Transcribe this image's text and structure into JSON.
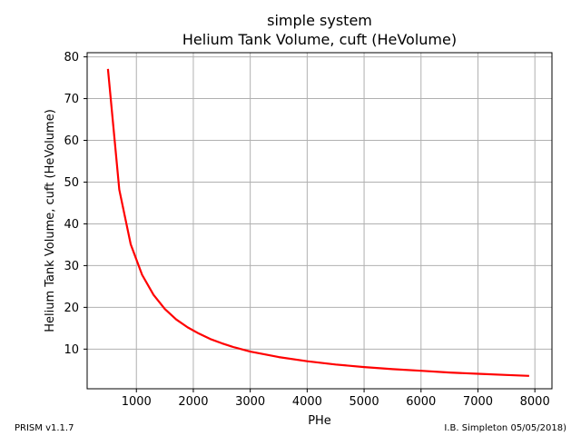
{
  "chart_data": {
    "type": "line",
    "title": "simple system",
    "subtitle": "Helium Tank Volume, cuft (HeVolume)",
    "xlabel": "PHe",
    "ylabel": "Helium Tank Volume, cuft (HeVolume)",
    "xlim": [
      135,
      8300
    ],
    "ylim": [
      0.5,
      81
    ],
    "xticks": [
      1000,
      2000,
      3000,
      4000,
      5000,
      6000,
      7000,
      8000
    ],
    "yticks": [
      10,
      20,
      30,
      40,
      50,
      60,
      70,
      80
    ],
    "grid": true,
    "series": [
      {
        "color": "#ff0000",
        "x": [
          500,
          700,
          900,
          1100,
          1300,
          1500,
          1700,
          1900,
          2100,
          2300,
          2500,
          2700,
          3000,
          3500,
          4000,
          4500,
          5000,
          5500,
          6000,
          6500,
          7000,
          7500,
          7900
        ],
        "y": [
          77.1,
          48.2,
          35.1,
          27.8,
          23.0,
          19.6,
          17.1,
          15.2,
          13.7,
          12.4,
          11.4,
          10.5,
          9.4,
          8.1,
          7.1,
          6.3,
          5.7,
          5.2,
          4.8,
          4.4,
          4.1,
          3.8,
          3.6
        ]
      }
    ]
  },
  "footer": {
    "left": "PRISM v1.1.7",
    "right": "I.B. Simpleton 05/05/2018)"
  }
}
